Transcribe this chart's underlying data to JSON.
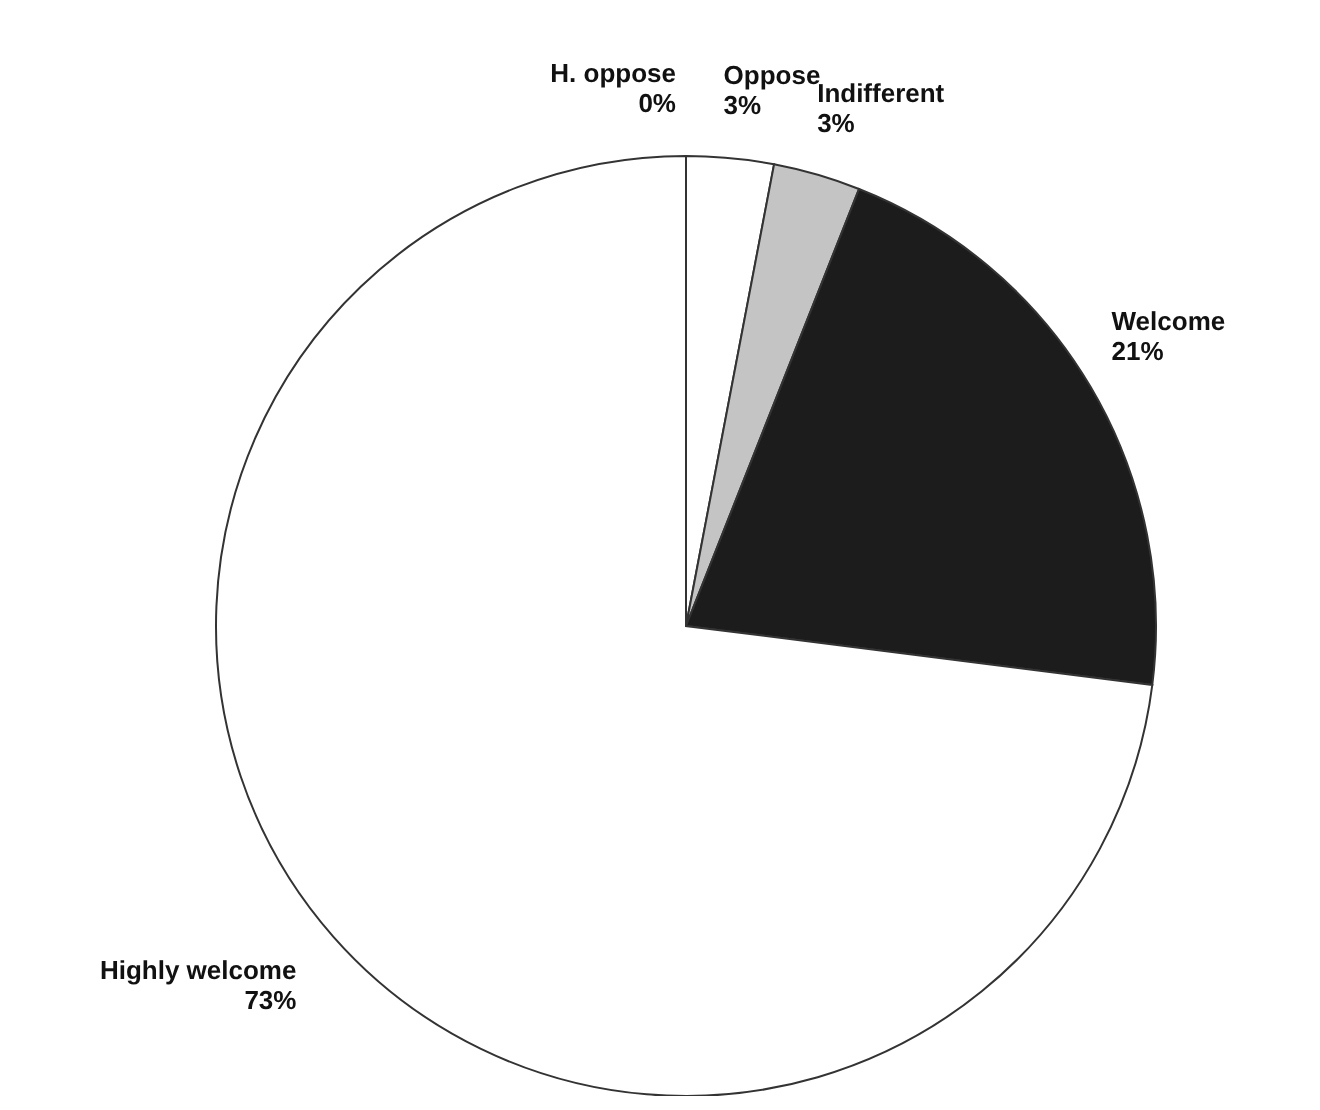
{
  "chart_data": {
    "type": "pie",
    "categories": [
      "H. oppose",
      "Oppose",
      "Indifferent",
      "Welcome",
      "Highly welcome"
    ],
    "values": [
      0,
      3,
      3,
      21,
      73
    ],
    "value_labels": [
      "0%",
      "3%",
      "3%",
      "21%",
      "73%"
    ],
    "colors": [
      "#ffffff",
      "#ffffff",
      "#c4c4c4",
      "#1c1c1c",
      "#ffffff"
    ],
    "legend": false
  }
}
